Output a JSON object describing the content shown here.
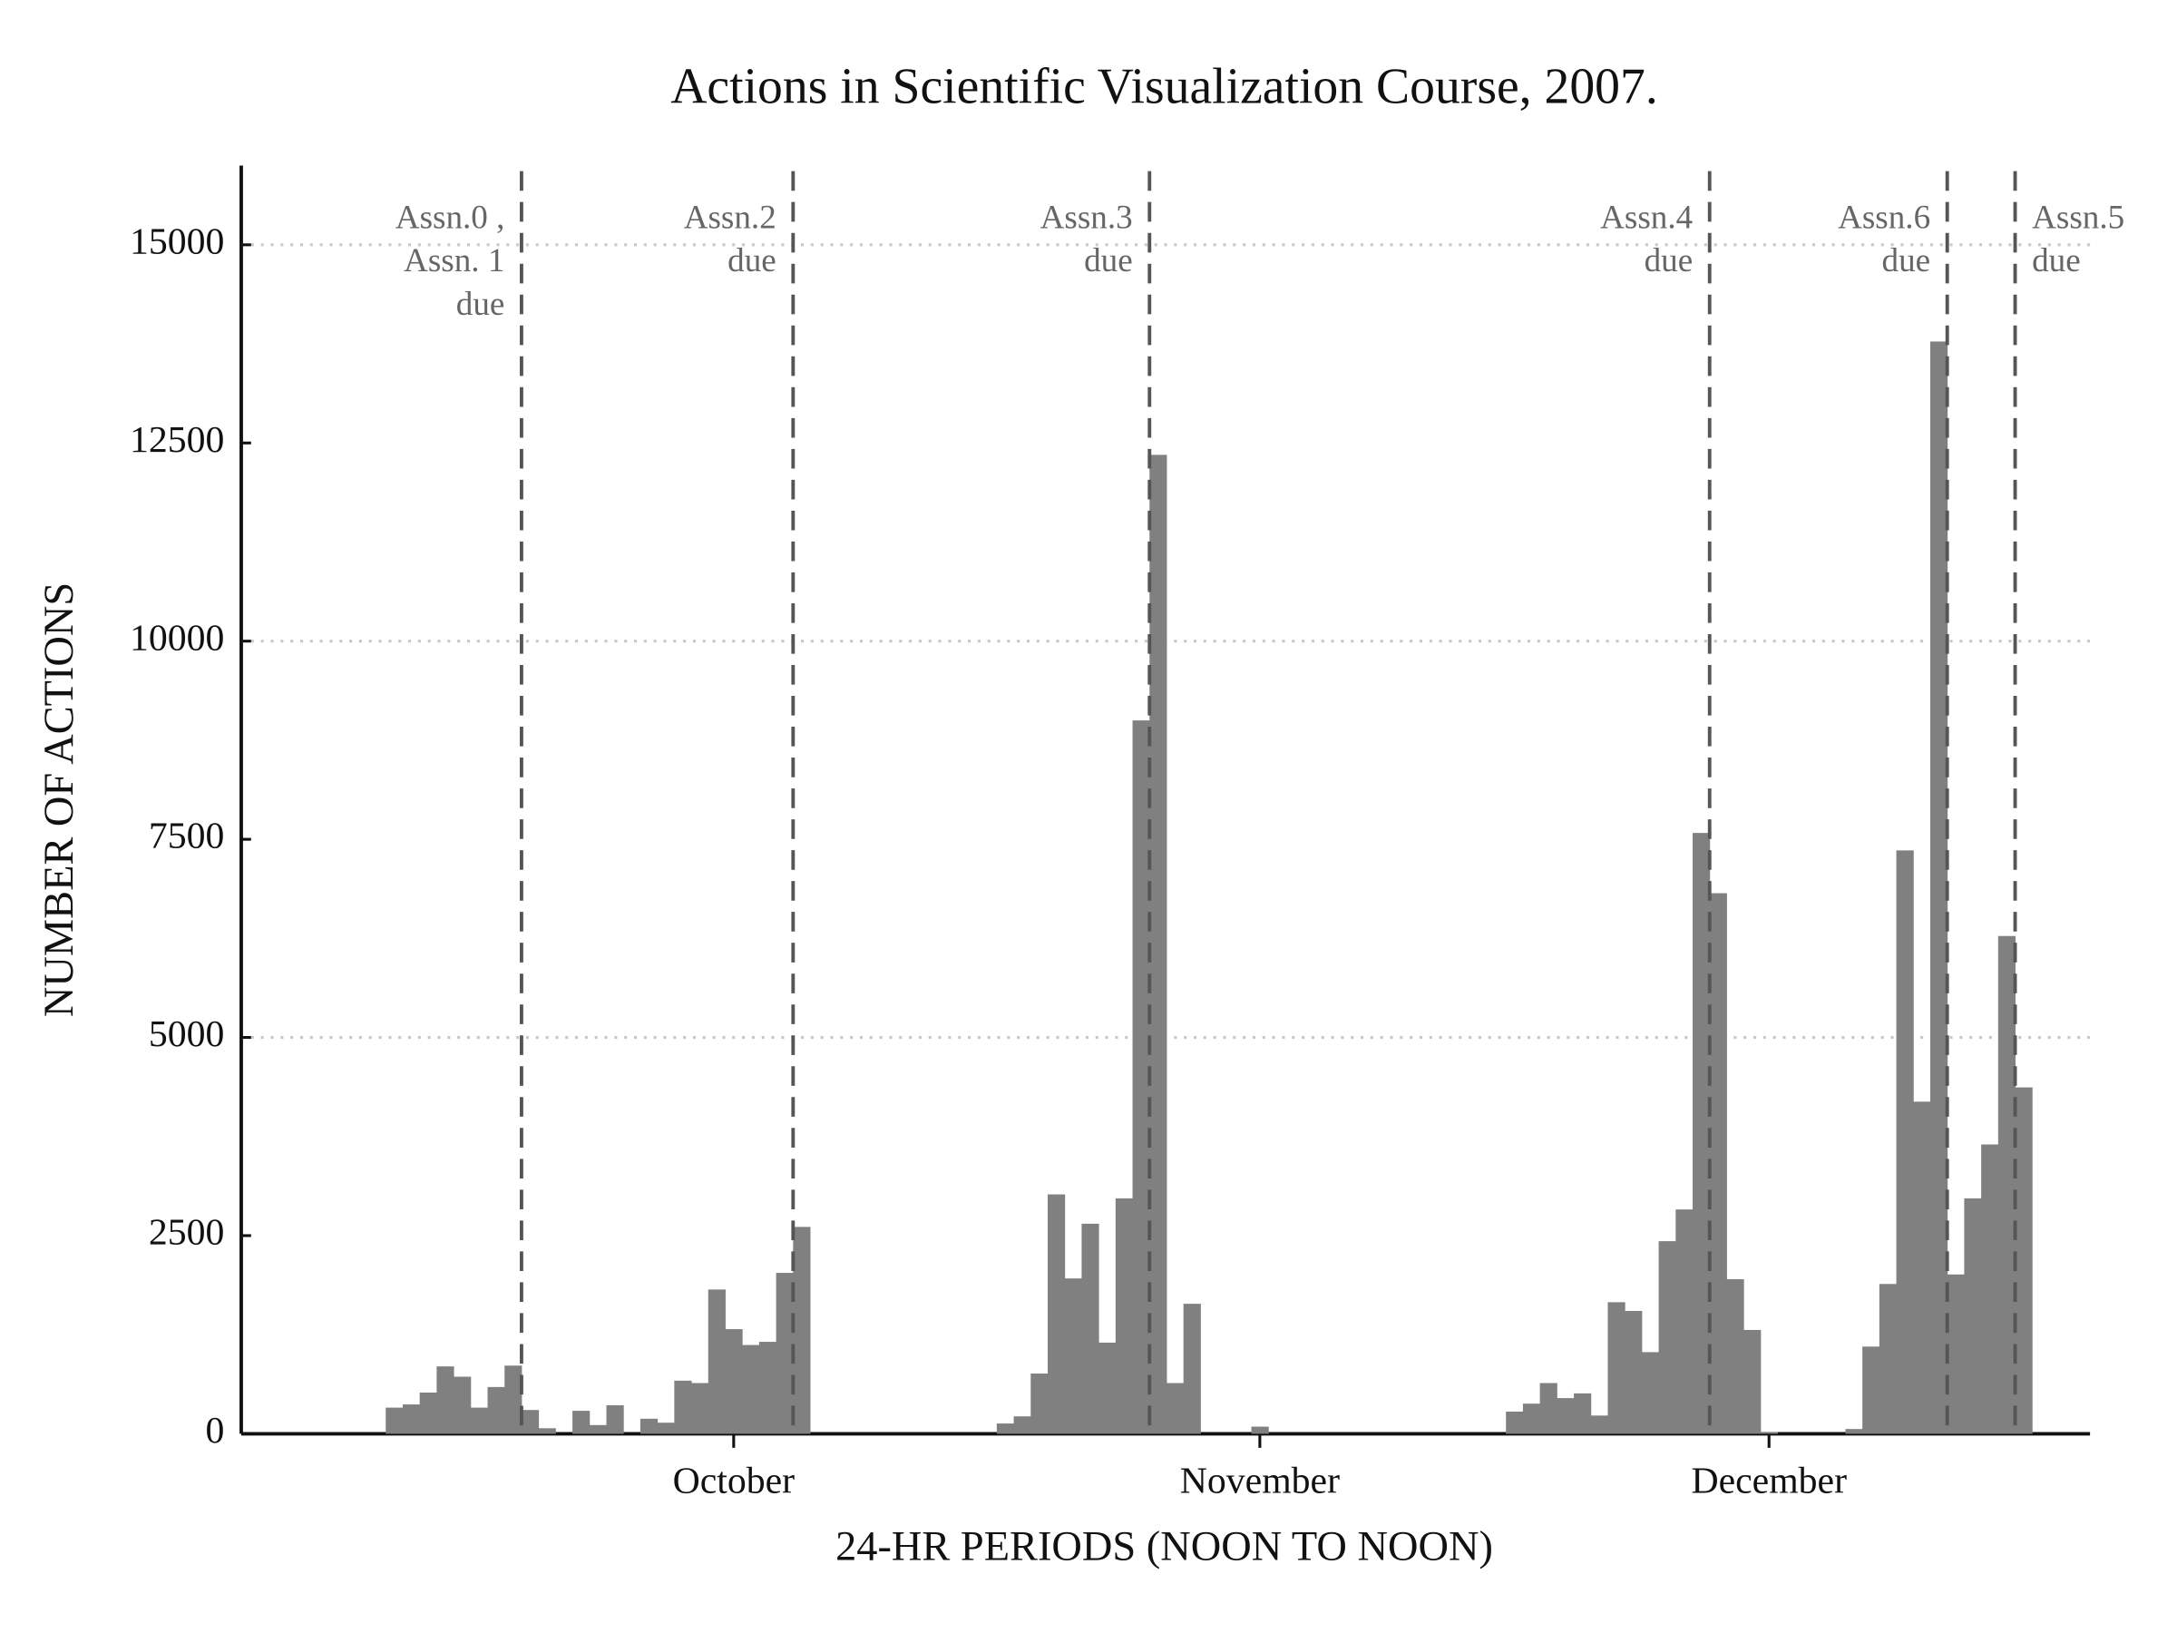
{
  "chart_data": {
    "type": "bar",
    "title": "Actions in Scientific Visualization Course, 2007.",
    "xlabel": "24-HR PERIODS (NOON TO NOON)",
    "ylabel": "NUMBER OF ACTIONS",
    "color": "#808080",
    "categories": [
      null,
      null,
      null,
      null,
      null,
      null,
      null,
      null,
      null,
      null,
      null,
      null,
      null,
      null,
      null,
      null,
      null,
      null,
      null,
      null,
      "October",
      null,
      null,
      null,
      null,
      null,
      null,
      null,
      null,
      null,
      null,
      null,
      null,
      null,
      null,
      null,
      null,
      null,
      null,
      null,
      null,
      null,
      null,
      null,
      null,
      null,
      null,
      null,
      null,
      null,
      null,
      "November",
      null,
      null,
      null,
      null,
      null,
      null,
      null,
      null,
      null,
      null,
      null,
      null,
      null,
      null,
      null,
      null,
      null,
      null,
      null,
      null,
      null,
      null,
      null,
      null,
      null,
      null,
      null,
      null,
      null,
      "December",
      null,
      null,
      null,
      null,
      null,
      null,
      null,
      null,
      null,
      null,
      null,
      null,
      null,
      null,
      null
    ],
    "values": [
      330,
      370,
      520,
      850,
      720,
      330,
      590,
      860,
      300,
      70,
      0,
      290,
      110,
      360,
      0,
      190,
      140,
      670,
      640,
      1820,
      1320,
      1120,
      1160,
      2030,
      2610,
      0,
      0,
      0,
      0,
      0,
      0,
      0,
      0,
      0,
      0,
      0,
      130,
      220,
      760,
      3020,
      1960,
      2650,
      1150,
      2970,
      9000,
      12350,
      640,
      1640,
      0,
      0,
      0,
      90,
      0,
      0,
      0,
      0,
      0,
      0,
      0,
      0,
      0,
      0,
      0,
      0,
      0,
      0,
      280,
      380,
      640,
      450,
      510,
      230,
      1660,
      1550,
      1030,
      2430,
      2830,
      7580,
      6820,
      1950,
      1310,
      20,
      0,
      0,
      0,
      0,
      60,
      1100,
      1890,
      7360,
      4190,
      13780,
      2010,
      2970,
      3650,
      6280,
      4370
    ],
    "ylim": [
      0,
      16000
    ],
    "yticks": [
      0,
      2500,
      5000,
      7500,
      10000,
      12500,
      15000
    ],
    "grid": true,
    "grid_step": 5000,
    "annotations": [
      {
        "lines": [
          "Assn.0 ,",
          "Assn. 1",
          "due"
        ],
        "category": 8,
        "side": "left"
      },
      {
        "lines": [
          "Assn.2",
          "due"
        ],
        "category": 24,
        "side": "left"
      },
      {
        "lines": [
          "Assn.3",
          "due"
        ],
        "category": 45,
        "side": "left"
      },
      {
        "lines": [
          "Assn.4",
          "due"
        ],
        "category": 78,
        "side": "left"
      },
      {
        "lines": [
          "Assn.6",
          "due"
        ],
        "category": 92,
        "side": "left"
      },
      {
        "lines": [
          "Assn.5",
          "due"
        ],
        "category": 96,
        "side": "right"
      }
    ]
  }
}
